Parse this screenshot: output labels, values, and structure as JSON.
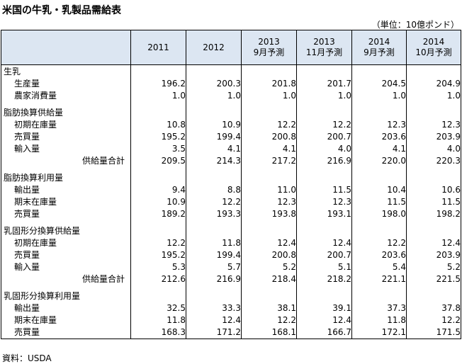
{
  "title": "米国の牛乳・乳製品需給表",
  "unit": "（単位：10億ポンド）",
  "source": "資料：USDA",
  "columns": [
    {
      "line1": "2011",
      "line2": ""
    },
    {
      "line1": "2012",
      "line2": ""
    },
    {
      "line1": "2013",
      "line2": "9月予測"
    },
    {
      "line1": "2013",
      "line2": "11月予測"
    },
    {
      "line1": "2014",
      "line2": "9月予測"
    },
    {
      "line1": "2014",
      "line2": "10月予測"
    }
  ],
  "sections": [
    {
      "heading": "生乳",
      "rows": [
        {
          "label": "生産量",
          "type": "sub",
          "values": [
            "196.2",
            "200.3",
            "201.8",
            "201.7",
            "204.5",
            "204.9"
          ]
        },
        {
          "label": "農家消費量",
          "type": "sub",
          "values": [
            "1.0",
            "1.0",
            "1.0",
            "1.0",
            "1.0",
            "1.0"
          ]
        }
      ]
    },
    {
      "heading": "脂肪換算供給量",
      "rows": [
        {
          "label": "初期在庫量",
          "type": "sub",
          "values": [
            "10.8",
            "10.9",
            "12.2",
            "12.2",
            "12.3",
            "12.3"
          ]
        },
        {
          "label": "売買量",
          "type": "sub",
          "values": [
            "195.2",
            "199.4",
            "200.8",
            "200.7",
            "203.6",
            "203.9"
          ]
        },
        {
          "label": "輸入量",
          "type": "sub",
          "values": [
            "3.5",
            "4.1",
            "4.1",
            "4.0",
            "4.1",
            "4.0"
          ]
        },
        {
          "label": "供給量合計",
          "type": "total",
          "values": [
            "209.5",
            "214.3",
            "217.2",
            "216.9",
            "220.0",
            "220.3"
          ]
        }
      ]
    },
    {
      "heading": "脂肪換算利用量",
      "rows": [
        {
          "label": "輸出量",
          "type": "sub",
          "values": [
            "9.4",
            "8.8",
            "11.0",
            "11.5",
            "10.4",
            "10.6"
          ]
        },
        {
          "label": "期末在庫量",
          "type": "sub",
          "values": [
            "10.9",
            "12.2",
            "12.3",
            "12.3",
            "11.5",
            "11.5"
          ]
        },
        {
          "label": "売買量",
          "type": "sub",
          "values": [
            "189.2",
            "193.3",
            "193.8",
            "193.1",
            "198.0",
            "198.2"
          ]
        }
      ]
    },
    {
      "heading": "乳固形分換算供給量",
      "rows": [
        {
          "label": "初期在庫量",
          "type": "sub",
          "values": [
            "12.2",
            "11.8",
            "12.4",
            "12.4",
            "12.2",
            "12.4"
          ]
        },
        {
          "label": "売買量",
          "type": "sub",
          "values": [
            "195.2",
            "199.4",
            "200.8",
            "200.7",
            "203.6",
            "203.9"
          ]
        },
        {
          "label": "輸入量",
          "type": "sub",
          "values": [
            "5.3",
            "5.7",
            "5.2",
            "5.1",
            "5.4",
            "5.2"
          ]
        },
        {
          "label": "供給量合計",
          "type": "total",
          "values": [
            "212.6",
            "216.9",
            "218.4",
            "218.2",
            "221.1",
            "221.5"
          ]
        }
      ]
    },
    {
      "heading": "乳固形分換算利用量",
      "rows": [
        {
          "label": "輸出量",
          "type": "sub",
          "values": [
            "32.5",
            "33.3",
            "38.1",
            "39.1",
            "37.3",
            "37.8"
          ]
        },
        {
          "label": "期末在庫量",
          "type": "sub",
          "values": [
            "11.8",
            "12.4",
            "12.2",
            "12.4",
            "11.8",
            "12.2"
          ]
        },
        {
          "label": "売買量",
          "type": "sub",
          "values": [
            "168.3",
            "171.2",
            "168.1",
            "166.7",
            "172.1",
            "171.5"
          ]
        }
      ]
    }
  ]
}
